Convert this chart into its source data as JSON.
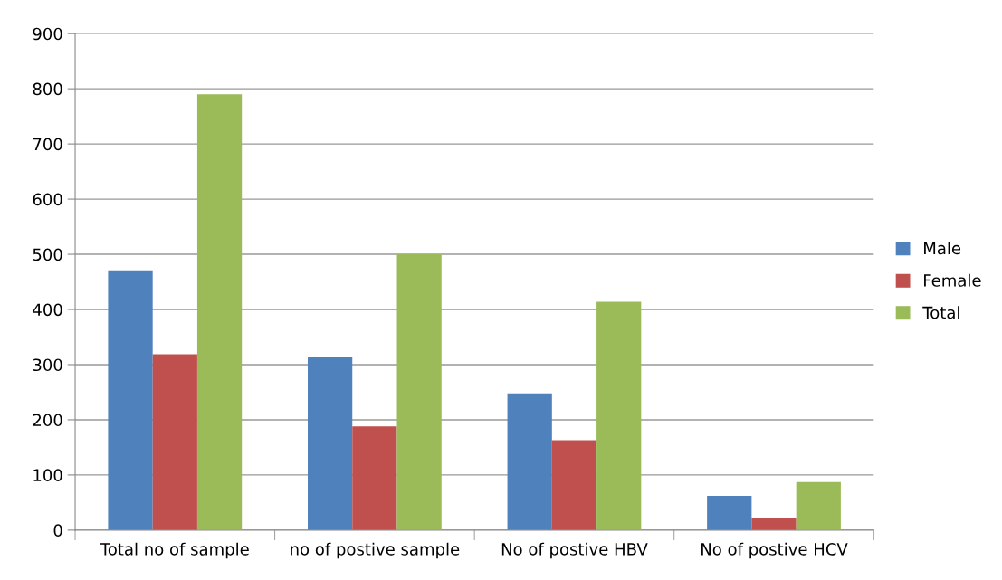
{
  "chart_data": {
    "type": "bar",
    "categories": [
      "Total no of sample",
      "no of postive sample",
      "No of postive HBV",
      "No of postive HCV"
    ],
    "series": [
      {
        "name": "Male",
        "color": "#4f81bd",
        "values": [
          471,
          313,
          248,
          62
        ]
      },
      {
        "name": "Female",
        "color": "#c0504d",
        "values": [
          319,
          188,
          163,
          22
        ]
      },
      {
        "name": "Total",
        "color": "#9bbb59",
        "values": [
          790,
          500,
          414,
          87
        ]
      }
    ],
    "ylim": [
      0,
      900
    ],
    "yticks": [
      0,
      100,
      200,
      300,
      400,
      500,
      600,
      700,
      800,
      900
    ],
    "grid": "y",
    "legend": "right"
  }
}
